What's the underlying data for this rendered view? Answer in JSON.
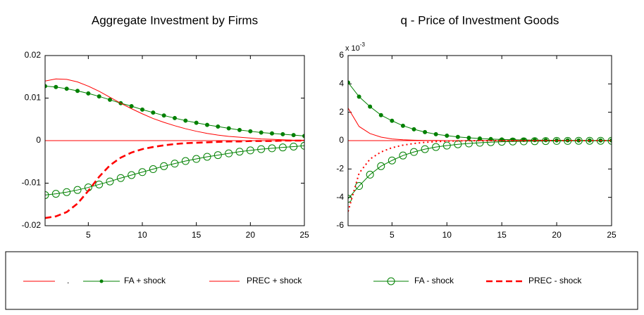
{
  "chart_data": [
    {
      "type": "line",
      "title": "Aggregate Investment by Firms",
      "legend_position": "bottom",
      "x": [
        1,
        2,
        3,
        4,
        5,
        6,
        7,
        8,
        9,
        10,
        11,
        12,
        13,
        14,
        15,
        16,
        17,
        18,
        19,
        20,
        21,
        22,
        23,
        24,
        25
      ],
      "xlim": [
        1,
        25
      ],
      "xticks": [
        5,
        10,
        15,
        20,
        25
      ],
      "ylim": [
        -0.02,
        0.02
      ],
      "yticks": [
        -0.02,
        -0.01,
        0,
        0.01,
        0.02
      ],
      "series": [
        {
          "name": ".",
          "color": "#ff0000",
          "line_style": "solid",
          "marker": "none",
          "values": [
            0,
            0,
            0,
            0,
            0,
            0,
            0,
            0,
            0,
            0,
            0,
            0,
            0,
            0,
            0,
            0,
            0,
            0,
            0,
            0,
            0,
            0,
            0,
            0,
            0
          ]
        },
        {
          "name": "FA + shock",
          "color": "#008000",
          "line_style": "solid",
          "marker": "dot",
          "values": [
            0.0128,
            0.0126,
            0.0122,
            0.0117,
            0.0111,
            0.0104,
            0.0096,
            0.0088,
            0.0081,
            0.0073,
            0.0066,
            0.0059,
            0.0053,
            0.0047,
            0.0042,
            0.0037,
            0.0033,
            0.0029,
            0.0025,
            0.0022,
            0.0019,
            0.0017,
            0.0015,
            0.0013,
            0.0011
          ]
        },
        {
          "name": "PREC + shock",
          "color": "#ff0000",
          "line_style": "solid",
          "marker": "none",
          "values": [
            0.014,
            0.0145,
            0.0144,
            0.0138,
            0.0128,
            0.0116,
            0.0102,
            0.0088,
            0.0075,
            0.0063,
            0.0052,
            0.0043,
            0.0035,
            0.0028,
            0.0022,
            0.0017,
            0.0013,
            0.001,
            0.0008,
            0.0006,
            0.0004,
            0.0003,
            0.0002,
            0.0001,
            0.0001
          ]
        },
        {
          "name": "FA - shock",
          "color": "#008000",
          "line_style": "solid",
          "marker": "circle",
          "values": [
            -0.0128,
            -0.0125,
            -0.0121,
            -0.0116,
            -0.011,
            -0.0103,
            -0.0096,
            -0.0088,
            -0.0081,
            -0.0074,
            -0.0067,
            -0.006,
            -0.0054,
            -0.0048,
            -0.0043,
            -0.0038,
            -0.0034,
            -0.003,
            -0.0026,
            -0.0023,
            -0.002,
            -0.0018,
            -0.0016,
            -0.0014,
            -0.0012
          ]
        },
        {
          "name": "PREC - shock",
          "color": "#ff0000",
          "line_style": "dashed",
          "marker": "none",
          "values": [
            -0.0182,
            -0.0178,
            -0.0168,
            -0.0148,
            -0.0118,
            -0.0085,
            -0.0058,
            -0.004,
            -0.0028,
            -0.002,
            -0.0015,
            -0.0011,
            -0.0008,
            -0.0006,
            -0.0005,
            -0.0004,
            -0.0003,
            -0.0002,
            -0.0002,
            -0.0001,
            -0.0001,
            -0.0001,
            0,
            0,
            0
          ]
        }
      ]
    },
    {
      "type": "line",
      "title": "q - Price of Investment Goods",
      "y_multiplier": {
        "base": "x 10",
        "exponent": "-3"
      },
      "x": [
        1,
        2,
        3,
        4,
        5,
        6,
        7,
        8,
        9,
        10,
        11,
        12,
        13,
        14,
        15,
        16,
        17,
        18,
        19,
        20,
        21,
        22,
        23,
        24,
        25
      ],
      "xlim": [
        1,
        25
      ],
      "xticks": [
        5,
        10,
        15,
        20,
        25
      ],
      "ylim": [
        -6,
        6
      ],
      "yticks": [
        -6,
        -4,
        -2,
        0,
        2,
        4,
        6
      ],
      "series": [
        {
          "color": "#ff0000",
          "line_style": "solid",
          "marker": "none",
          "values": [
            0,
            0,
            0,
            0,
            0,
            0,
            0,
            0,
            0,
            0,
            0,
            0,
            0,
            0,
            0,
            0,
            0,
            0,
            0,
            0,
            0,
            0,
            0,
            0,
            0
          ]
        },
        {
          "color": "#008000",
          "line_style": "solid",
          "marker": "dot",
          "values": [
            4.1,
            3.1,
            2.4,
            1.8,
            1.4,
            1.05,
            0.8,
            0.6,
            0.45,
            0.35,
            0.26,
            0.2,
            0.15,
            0.11,
            0.08,
            0.06,
            0.05,
            0.04,
            0.03,
            0.02,
            0.02,
            0.01,
            0.01,
            0.01,
            0.01
          ]
        },
        {
          "color": "#ff0000",
          "line_style": "solid",
          "marker": "none",
          "values": [
            2.3,
            1.0,
            0.5,
            0.25,
            0.12,
            0.06,
            0.03,
            0.015,
            0.01,
            0,
            0,
            0,
            0,
            0,
            0,
            0,
            0,
            0,
            0,
            0,
            0,
            0,
            0,
            0,
            0
          ]
        },
        {
          "color": "#008000",
          "line_style": "solid",
          "marker": "circle",
          "values": [
            -4.1,
            -3.2,
            -2.4,
            -1.8,
            -1.4,
            -1.05,
            -0.8,
            -0.6,
            -0.45,
            -0.35,
            -0.26,
            -0.2,
            -0.15,
            -0.11,
            -0.08,
            -0.06,
            -0.05,
            -0.04,
            -0.03,
            -0.02,
            -0.02,
            -0.01,
            -0.01,
            -0.01,
            -0.01
          ]
        },
        {
          "color": "#ff0000",
          "line_style": "dotted",
          "marker": "none",
          "values": [
            -5.0,
            -2.3,
            -1.3,
            -0.8,
            -0.5,
            -0.32,
            -0.2,
            -0.12,
            -0.07,
            -0.04,
            -0.02,
            -0.01,
            0,
            0,
            0,
            0,
            0,
            0,
            0,
            0,
            0,
            0,
            0,
            0,
            0
          ]
        }
      ]
    }
  ]
}
